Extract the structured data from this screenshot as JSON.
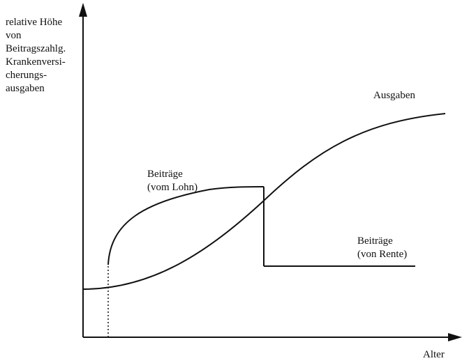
{
  "axes": {
    "y_label_lines": [
      "relative Höhe",
      "von",
      "Beitragszahlg.",
      "Krankenversi-",
      "cherungs-",
      "ausgaben"
    ],
    "x_label": "Alter"
  },
  "curves": {
    "ausgaben": {
      "label": "Ausgaben"
    },
    "beitraege_lohn": {
      "label_line1": "Beiträge",
      "label_line2": "(vom Lohn)"
    },
    "beitraege_rente": {
      "label_line1": "Beiträge",
      "label_line2": "(von Rente)"
    }
  },
  "colors": {
    "ink": "#111111",
    "background": "#ffffff"
  }
}
